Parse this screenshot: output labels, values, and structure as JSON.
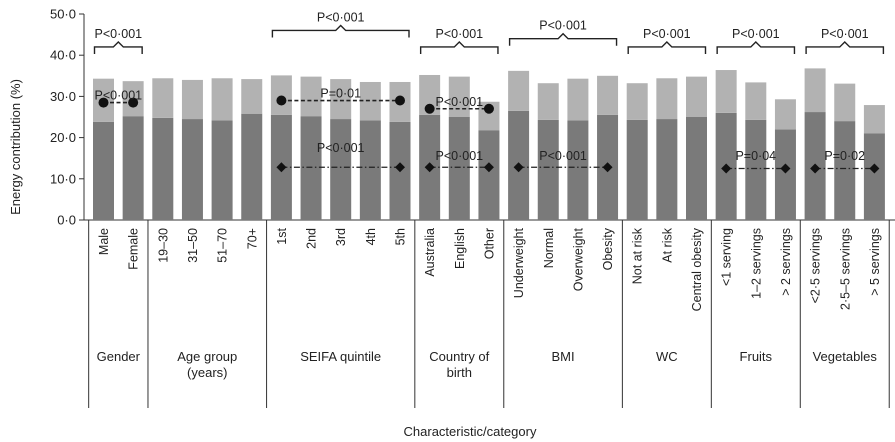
{
  "chart_data": {
    "type": "bar",
    "xlabel": "Characteristic/category",
    "ylabel": "Energy contribution (%)",
    "ylim": [
      0,
      50
    ],
    "yticks": [
      "0·0",
      "10·0",
      "20·0",
      "30·0",
      "40·0",
      "50·0"
    ],
    "grid": false,
    "categories": [
      "Male",
      "Female",
      "19–30",
      "31–50",
      "51–70",
      "70+",
      "1st",
      "2nd",
      "3rd",
      "4th",
      "5th",
      "Australia",
      "English",
      "Other",
      "Underweight",
      "Normal",
      "Overweight",
      "Obesity",
      "Not at risk",
      "At risk",
      "Central obesity",
      "<1 serving",
      "1–2 servings",
      "> 2 servings",
      "<2·5 servings",
      "2·5–5 servings",
      "> 5 servings"
    ],
    "series": [
      {
        "stack": "lower",
        "color": "#7a7a7a",
        "values": [
          23.8,
          25.2,
          24.8,
          24.5,
          24.2,
          25.8,
          25.5,
          25.2,
          24.5,
          24.2,
          23.8,
          25.5,
          25.0,
          21.8,
          26.5,
          24.3,
          24.2,
          25.5,
          24.3,
          24.5,
          25.0,
          26.0,
          24.3,
          22.0,
          26.2,
          24.0,
          21.0
        ]
      },
      {
        "stack": "upper",
        "color": "#b2b2b2",
        "values": [
          10.5,
          8.5,
          9.6,
          9.5,
          10.2,
          8.4,
          9.6,
          9.6,
          9.7,
          9.3,
          9.7,
          9.7,
          9.8,
          6.9,
          9.7,
          8.9,
          10.1,
          9.5,
          8.9,
          9.9,
          9.8,
          10.4,
          9.1,
          7.3,
          10.6,
          9.1,
          6.9
        ]
      }
    ],
    "totals": [
      34.3,
      33.7,
      34.4,
      34.0,
      34.4,
      34.2,
      35.1,
      34.8,
      34.2,
      33.5,
      33.5,
      35.2,
      34.8,
      28.7,
      36.2,
      33.2,
      34.3,
      35.0,
      33.2,
      34.4,
      34.8,
      36.4,
      33.4,
      29.3,
      36.8,
      33.1,
      27.9
    ],
    "groups": [
      {
        "label": [
          "Gender"
        ],
        "start": 0,
        "end": 1
      },
      {
        "label": [
          "Age group",
          "(years)"
        ],
        "start": 2,
        "end": 5
      },
      {
        "label": [
          "SEIFA quintile"
        ],
        "start": 6,
        "end": 10
      },
      {
        "label": [
          "Country of",
          "birth"
        ],
        "start": 11,
        "end": 13
      },
      {
        "label": [
          "BMI"
        ],
        "start": 14,
        "end": 17
      },
      {
        "label": [
          "WC"
        ],
        "start": 18,
        "end": 20
      },
      {
        "label": [
          "Fruits"
        ],
        "start": 21,
        "end": 23
      },
      {
        "label": [
          "Vegetables"
        ],
        "start": 24,
        "end": 26
      }
    ],
    "total_brackets": [
      {
        "start": 0,
        "end": 1,
        "text": "P<0·001",
        "y": 42.0
      },
      {
        "start": 6,
        "end": 10,
        "text": "P<0·001",
        "y": 46.0
      },
      {
        "start": 11,
        "end": 13,
        "text": "P<0·001",
        "y": 42.0
      },
      {
        "start": 14,
        "end": 17,
        "text": "P<0·001",
        "y": 44.0
      },
      {
        "start": 18,
        "end": 20,
        "text": "P<0·001",
        "y": 42.0
      },
      {
        "start": 21,
        "end": 23,
        "text": "P<0·001",
        "y": 42.0
      },
      {
        "start": 24,
        "end": 26,
        "text": "P<0·001",
        "y": 42.0
      }
    ],
    "circle_trends": [
      {
        "start": 0,
        "end": 1,
        "y": 28.5,
        "text": "P<0·001"
      },
      {
        "start": 6,
        "end": 10,
        "y": 29.0,
        "text": "P=0·01"
      },
      {
        "start": 11,
        "end": 13,
        "y": 27.0,
        "text": "P<0·001"
      }
    ],
    "diamond_trends": [
      {
        "start": 6,
        "end": 10,
        "y": 12.8,
        "text": "P<0·001",
        "label_y": 17.5
      },
      {
        "start": 11,
        "end": 13,
        "y": 12.8,
        "text": "P<0·001",
        "label_y": 15.5
      },
      {
        "start": 14,
        "end": 17,
        "y": 12.8,
        "text": "P<0·001",
        "label_y": 15.5
      },
      {
        "start": 21,
        "end": 23,
        "y": 12.5,
        "text": "P=0·04",
        "label_y": 15.5
      },
      {
        "start": 24,
        "end": 26,
        "y": 12.5,
        "text": "P=0·02",
        "label_y": 15.5
      }
    ]
  }
}
